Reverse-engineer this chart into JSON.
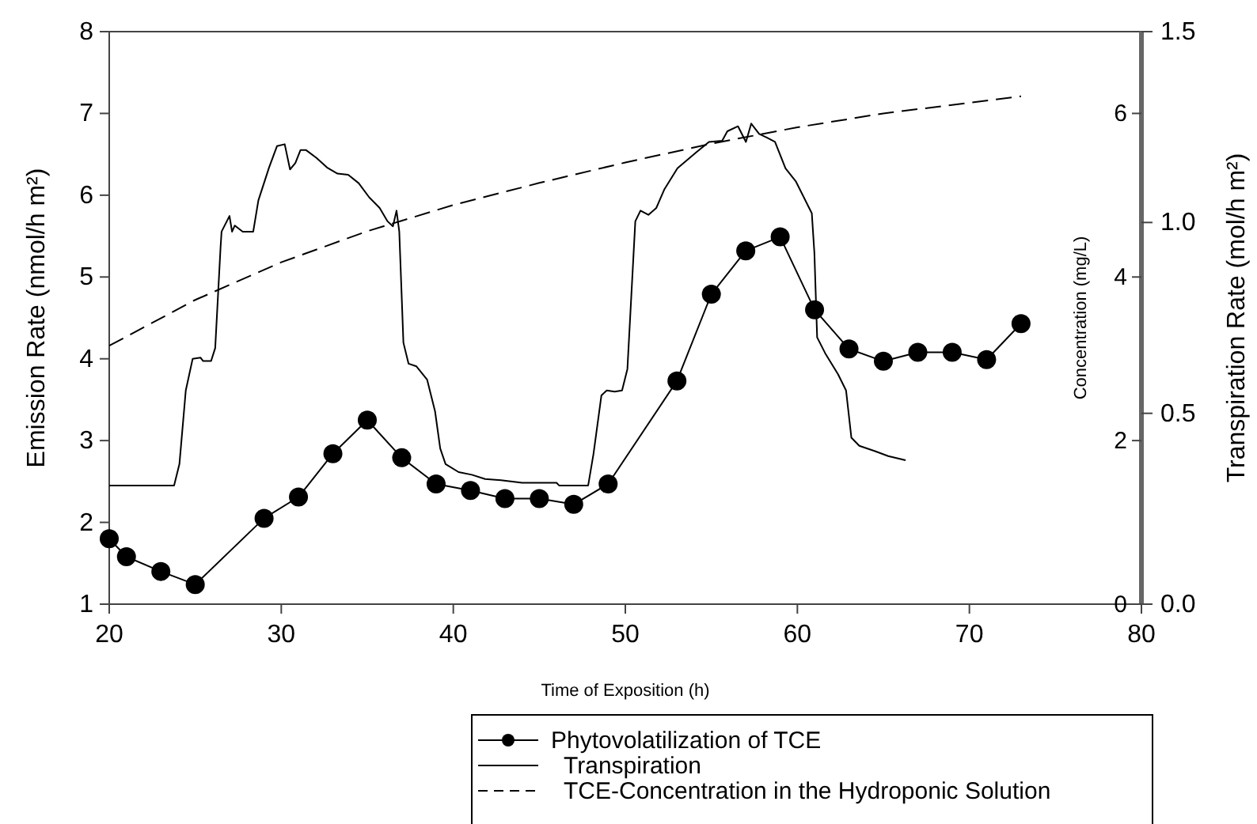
{
  "chart_data": {
    "type": "line",
    "xlabel": "Time of Exposition (h)",
    "ylabel": "Emission Rate (nmol/h m²)",
    "y2label": "Transpiration Rate (mol/h m²)",
    "y3label": "Concentration (mg/L)",
    "xlim": [
      20,
      80
    ],
    "xticks": [
      20,
      30,
      40,
      50,
      60,
      70,
      80
    ],
    "ylim": [
      1,
      8
    ],
    "yticks": [
      1,
      2,
      3,
      4,
      5,
      6,
      7,
      8
    ],
    "y2lim": [
      0,
      1.5
    ],
    "y2ticks": [
      {
        "value": 0,
        "label": "0.0"
      },
      {
        "value": 0.5,
        "label": "0.5"
      },
      {
        "value": 1,
        "label": "1.0"
      },
      {
        "value": 1.5,
        "label": "1.5"
      }
    ],
    "y3lim": [
      0,
      7
    ],
    "y3ticks": [
      0,
      2,
      4,
      6
    ],
    "grid": false,
    "legend": "bottom",
    "series": [
      {
        "name": "Phytovolatilization of TCE",
        "color": "#000000",
        "marker": "circle",
        "line_style": "solid",
        "x": [
          20,
          21,
          23,
          25,
          29,
          31,
          33,
          35,
          37,
          39,
          41,
          43,
          45,
          47,
          49,
          53,
          55,
          57,
          59,
          61,
          63,
          65,
          67,
          69,
          71,
          73
        ],
        "values": [
          1.8,
          1.58,
          1.4,
          1.24,
          2.05,
          2.31,
          2.84,
          3.25,
          2.79,
          2.47,
          2.39,
          2.29,
          2.29,
          2.22,
          2.47,
          3.73,
          4.79,
          5.32,
          5.49,
          4.6,
          4.12,
          3.97,
          4.08,
          4.08,
          3.99,
          4.43
        ]
      },
      {
        "name": "Transpiration",
        "color": "#000000",
        "marker": "none",
        "line_style": "solid",
        "axis": "y2",
        "x": [
          20,
          23.77,
          24.08,
          24.45,
          24.85,
          25.3,
          25.46,
          25.92,
          26.16,
          26.47,
          26.53,
          26.99,
          27.14,
          27.3,
          27.76,
          28.37,
          28.67,
          29.29,
          29.75,
          30.2,
          30.51,
          30.82,
          31.12,
          31.43,
          32.05,
          32.66,
          33.27,
          33.89,
          34.5,
          35.11,
          35.72,
          36.18,
          36.49,
          36.7,
          36.86,
          37.1,
          37.4,
          37.86,
          38.48,
          38.94,
          39.24,
          39.55,
          40.31,
          41.08,
          41.85,
          42.77,
          44,
          46,
          46.15,
          47.84,
          48.15,
          48.61,
          48.92,
          49.38,
          49.81,
          50.12,
          50.58,
          50.88,
          51.34,
          51.8,
          52.26,
          53.03,
          54.1,
          54.86,
          55.63,
          55.93,
          56.55,
          57.01,
          57.32,
          57.78,
          58.24,
          58.7,
          59.31,
          59.92,
          60.84,
          60.99,
          61.15,
          61.61,
          62.37,
          62.83,
          63.14,
          63.6,
          64.51,
          65.28,
          66.29
        ],
        "values": [
          0.311,
          0.311,
          0.367,
          0.56,
          0.643,
          0.646,
          0.637,
          0.637,
          0.671,
          0.934,
          0.976,
          1.017,
          0.976,
          0.992,
          0.976,
          0.976,
          1.058,
          1.144,
          1.2,
          1.205,
          1.139,
          1.156,
          1.19,
          1.19,
          1.169,
          1.144,
          1.128,
          1.125,
          1.103,
          1.066,
          1.038,
          1.003,
          0.99,
          1.031,
          0.976,
          0.685,
          0.63,
          0.623,
          0.588,
          0.505,
          0.408,
          0.367,
          0.346,
          0.339,
          0.328,
          0.325,
          0.318,
          0.318,
          0.311,
          0.311,
          0.394,
          0.547,
          0.56,
          0.557,
          0.56,
          0.616,
          1.003,
          1.031,
          1.02,
          1.038,
          1.086,
          1.142,
          1.183,
          1.211,
          1.214,
          1.239,
          1.252,
          1.211,
          1.259,
          1.232,
          1.222,
          1.211,
          1.142,
          1.107,
          1.024,
          0.92,
          0.699,
          0.658,
          0.602,
          0.56,
          0.436,
          0.415,
          0.401,
          0.388,
          0.377
        ]
      },
      {
        "name": "TCE-Concentration in the Hydroponic Solution",
        "color": "#000000",
        "marker": "none",
        "line_style": "dashed",
        "axis": "y3",
        "x": [
          20,
          25,
          30,
          35,
          40,
          45,
          50,
          55,
          60,
          65,
          70,
          73
        ],
        "values": [
          3.16,
          3.72,
          4.18,
          4.56,
          4.88,
          5.15,
          5.4,
          5.63,
          5.83,
          6.0,
          6.13,
          6.21
        ]
      }
    ]
  }
}
